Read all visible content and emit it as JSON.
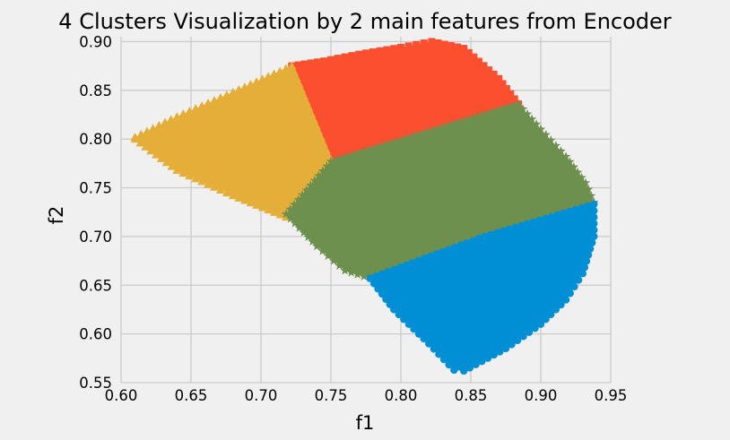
{
  "chart_data": {
    "type": "scatter",
    "title": "4 Clusters Visualization by 2 main features from Encoder",
    "xlabel": "f1",
    "ylabel": "f2",
    "xlim": [
      0.6,
      0.95
    ],
    "ylim": [
      0.55,
      0.905
    ],
    "xticks": [
      "0.60",
      "0.65",
      "0.70",
      "0.75",
      "0.80",
      "0.85",
      "0.90",
      "0.95"
    ],
    "yticks": [
      "0.55",
      "0.60",
      "0.65",
      "0.70",
      "0.75",
      "0.80",
      "0.85",
      "0.90"
    ],
    "grid": true,
    "legend": "none",
    "series": [
      {
        "marker": "square",
        "color": "#fc4f30",
        "region": [
          [
            0.722,
            0.875
          ],
          [
            0.745,
            0.88
          ],
          [
            0.77,
            0.887
          ],
          [
            0.8,
            0.894
          ],
          [
            0.822,
            0.9
          ],
          [
            0.845,
            0.893
          ],
          [
            0.87,
            0.862
          ],
          [
            0.884,
            0.836
          ],
          [
            0.75,
            0.777
          ]
        ]
      },
      {
        "marker": "triangle",
        "color": "#e5ae38",
        "region": [
          [
            0.61,
            0.802
          ],
          [
            0.64,
            0.823
          ],
          [
            0.68,
            0.848
          ],
          [
            0.722,
            0.875
          ],
          [
            0.75,
            0.777
          ],
          [
            0.718,
            0.72
          ],
          [
            0.68,
            0.742
          ],
          [
            0.64,
            0.768
          ],
          [
            0.61,
            0.8
          ]
        ]
      },
      {
        "marker": "star",
        "color": "#6d904f",
        "region": [
          [
            0.718,
            0.723
          ],
          [
            0.75,
            0.777
          ],
          [
            0.884,
            0.836
          ],
          [
            0.9,
            0.81
          ],
          [
            0.918,
            0.782
          ],
          [
            0.932,
            0.755
          ],
          [
            0.938,
            0.735
          ],
          [
            0.86,
            0.7
          ],
          [
            0.778,
            0.657
          ],
          [
            0.76,
            0.665
          ],
          [
            0.74,
            0.69
          ]
        ]
      },
      {
        "marker": "circle",
        "color": "#008fd5",
        "region": [
          [
            0.778,
            0.657
          ],
          [
            0.86,
            0.7
          ],
          [
            0.938,
            0.733
          ],
          [
            0.938,
            0.7
          ],
          [
            0.93,
            0.662
          ],
          [
            0.918,
            0.635
          ],
          [
            0.9,
            0.61
          ],
          [
            0.875,
            0.585
          ],
          [
            0.845,
            0.562
          ],
          [
            0.838,
            0.563
          ],
          [
            0.82,
            0.59
          ],
          [
            0.795,
            0.625
          ]
        ]
      }
    ]
  }
}
